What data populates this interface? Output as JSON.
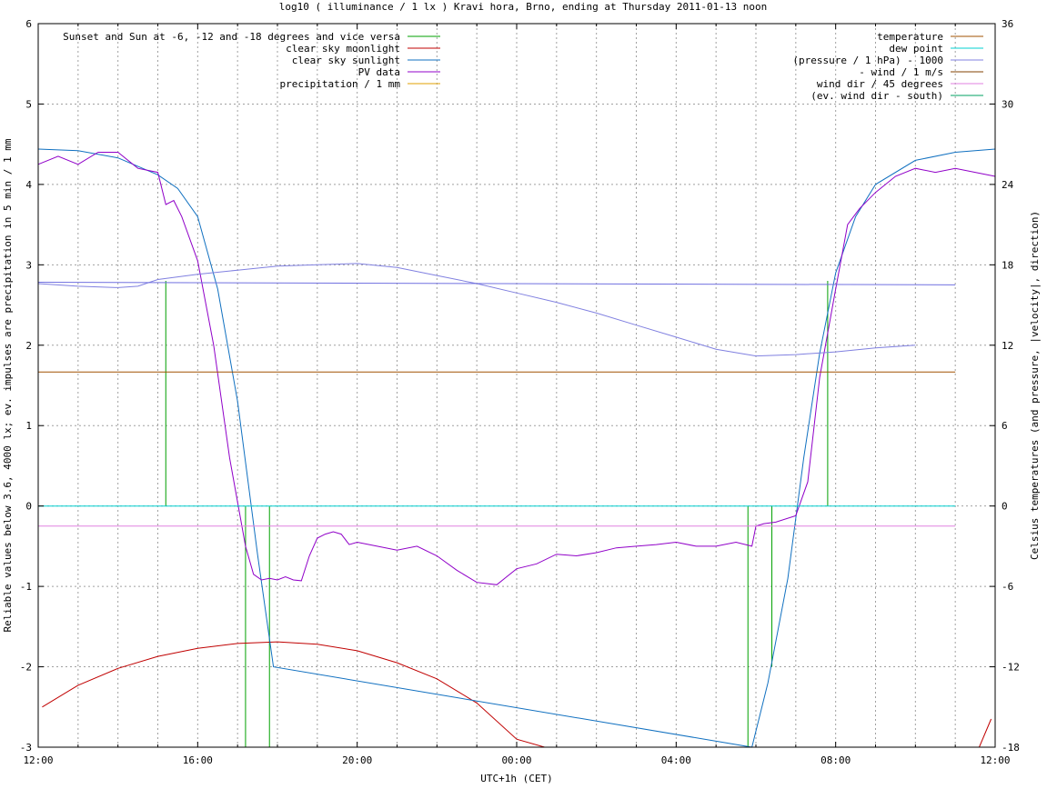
{
  "chart_data": {
    "type": "line",
    "title": "log10 ( illuminance / 1 lx ) Kravi hora, Brno, ending at Thursday 2011-01-13 noon",
    "xlabel": "UTC+1h (CET)",
    "ylabel": "Reliable values below 3.6, 4000 lx; ev. impulses are precipitation in 5 min / 1 mm",
    "y2label": "Celsius temperatures (and pressure, |velocity|, direction)",
    "xlim": [
      -12,
      12
    ],
    "ylim": [
      -3,
      6
    ],
    "y2lim": [
      -18,
      36
    ],
    "x_tick_labels": [
      "12:00",
      "16:00",
      "20:00",
      "00:00",
      "04:00",
      "08:00",
      "12:00"
    ],
    "x_tick_values": [
      -12,
      -8,
      -4,
      0,
      4,
      8,
      12
    ],
    "y_ticks": [
      -3,
      -2,
      -1,
      0,
      1,
      2,
      3,
      4,
      5,
      6
    ],
    "y2_ticks": [
      -18,
      -12,
      -6,
      0,
      6,
      12,
      18,
      24,
      30,
      36
    ],
    "grid": true,
    "legend_left_position": "top-left",
    "legend_right_position": "top-right",
    "series": [
      {
        "name": "Sunset and Sun at -6, -12 and -18 degrees and vice versa",
        "color": "#00a000",
        "kind": "impulses",
        "x": [
          -8.8,
          -7.6,
          -6.8,
          -6.2,
          5.8,
          6.4,
          7.8
        ],
        "y": [
          2.8,
          0.0,
          -3.0,
          -3.0,
          -3.0,
          -2.0,
          2.8
        ]
      },
      {
        "name": "clear sky moonlight",
        "color": "#c00000",
        "x": [
          -11.9,
          -11,
          -10,
          -9,
          -8,
          -7,
          -6,
          -5,
          -4,
          -3,
          -2,
          -1,
          0,
          0.7,
          11.6,
          11.9
        ],
        "y": [
          -2.5,
          -2.23,
          -2.02,
          -1.87,
          -1.77,
          -1.71,
          -1.69,
          -1.72,
          -1.8,
          -1.95,
          -2.15,
          -2.45,
          -2.9,
          -3.0,
          -3.0,
          -2.65
        ]
      },
      {
        "name": "clear sky sunlight",
        "color": "#1070c0",
        "x": [
          -12,
          -11,
          -10,
          -9,
          -8.5,
          -8,
          -7.5,
          -7,
          -6.5,
          -6.1,
          5.9,
          6.3,
          6.8,
          7.2,
          7.6,
          8,
          8.5,
          9,
          10,
          11,
          12
        ],
        "y": [
          4.44,
          4.42,
          4.33,
          4.12,
          3.95,
          3.6,
          2.7,
          1.3,
          -0.6,
          -2.0,
          -3.0,
          -2.2,
          -0.9,
          0.6,
          1.9,
          2.9,
          3.6,
          4.0,
          4.3,
          4.4,
          4.44
        ]
      },
      {
        "name": "PV data",
        "color": "#9000c8",
        "x": [
          -12,
          -11.5,
          -11,
          -10.5,
          -10,
          -9.5,
          -9,
          -8.8,
          -8.6,
          -8.4,
          -8,
          -7.6,
          -7.2,
          -6.8,
          -6.6,
          -6.4,
          -6.2,
          -6.0,
          -5.8,
          -5.6,
          -5.4,
          -5.2,
          -5.0,
          -4.8,
          -4.6,
          -4.4,
          -4.2,
          -4.0,
          -3.5,
          -3.0,
          -2.5,
          -2.0,
          -1.5,
          -1.0,
          -0.5,
          0.0,
          0.5,
          1.0,
          1.5,
          2.0,
          2.5,
          3.0,
          3.5,
          4.0,
          4.5,
          5.0,
          5.5,
          5.9,
          6.0,
          6.2,
          6.5,
          7.0,
          7.3,
          7.6,
          8.0,
          8.3,
          8.6,
          9.0,
          9.5,
          10.0,
          10.5,
          11.0,
          11.5,
          12.0
        ],
        "y": [
          4.25,
          4.35,
          4.25,
          4.4,
          4.4,
          4.2,
          4.15,
          3.75,
          3.8,
          3.6,
          3.05,
          2.0,
          0.6,
          -0.5,
          -0.85,
          -0.92,
          -0.9,
          -0.92,
          -0.88,
          -0.92,
          -0.93,
          -0.62,
          -0.4,
          -0.35,
          -0.32,
          -0.35,
          -0.48,
          -0.45,
          -0.5,
          -0.55,
          -0.5,
          -0.62,
          -0.8,
          -0.95,
          -0.98,
          -0.78,
          -0.72,
          -0.6,
          -0.62,
          -0.58,
          -0.52,
          -0.5,
          -0.48,
          -0.45,
          -0.5,
          -0.5,
          -0.45,
          -0.5,
          -0.25,
          -0.22,
          -0.2,
          -0.12,
          0.3,
          1.6,
          2.7,
          3.5,
          3.7,
          3.9,
          4.1,
          4.2,
          4.15,
          4.2,
          4.15,
          4.1
        ]
      },
      {
        "name": "precipitation / 1 mm",
        "color": "#e0a000",
        "x": [],
        "y": []
      },
      {
        "name": "temperature",
        "color": "#a05000",
        "axis": "y2",
        "x": [
          -12,
          11
        ],
        "y": [
          10.0,
          10.0
        ]
      },
      {
        "name": "dew point",
        "color": "#00d0d0",
        "axis": "y2",
        "x": [
          -12,
          11
        ],
        "y": [
          0.0,
          0.0
        ]
      },
      {
        "name": "(pressure / 1 hPa) - 1000",
        "color": "#8080e0",
        "axis": "y2",
        "x": [
          -12,
          -11,
          -10,
          -9.5,
          -9,
          -8,
          -7,
          -6,
          -5,
          -4,
          -3,
          -2,
          -1,
          0,
          1,
          2,
          3,
          4,
          5,
          6,
          7,
          8,
          9,
          10
        ],
        "y": [
          16.6,
          16.4,
          16.3,
          16.4,
          16.9,
          17.3,
          17.6,
          17.9,
          18.0,
          18.1,
          17.8,
          17.2,
          16.6,
          15.9,
          15.2,
          14.4,
          13.5,
          12.6,
          11.7,
          11.2,
          11.3,
          11.5,
          11.8,
          12.0
        ]
      },
      {
        "name": "- wind / 1 m/s",
        "color": "#804000",
        "axis": "y2",
        "x": [],
        "y": []
      },
      {
        "name": "wind dir / 45 degrees",
        "color": "#e080e0",
        "axis": "y2",
        "x": [
          -12,
          11
        ],
        "y": [
          -1.5,
          -1.5
        ]
      },
      {
        "name": "(ev. wind dir - south)",
        "color": "#00a060",
        "axis": "y2",
        "x": [],
        "y": []
      },
      {
        "name": "",
        "color": "#7070e0",
        "axis": "y2",
        "x": [
          -12,
          11
        ],
        "y": [
          16.7,
          16.5
        ]
      }
    ]
  }
}
